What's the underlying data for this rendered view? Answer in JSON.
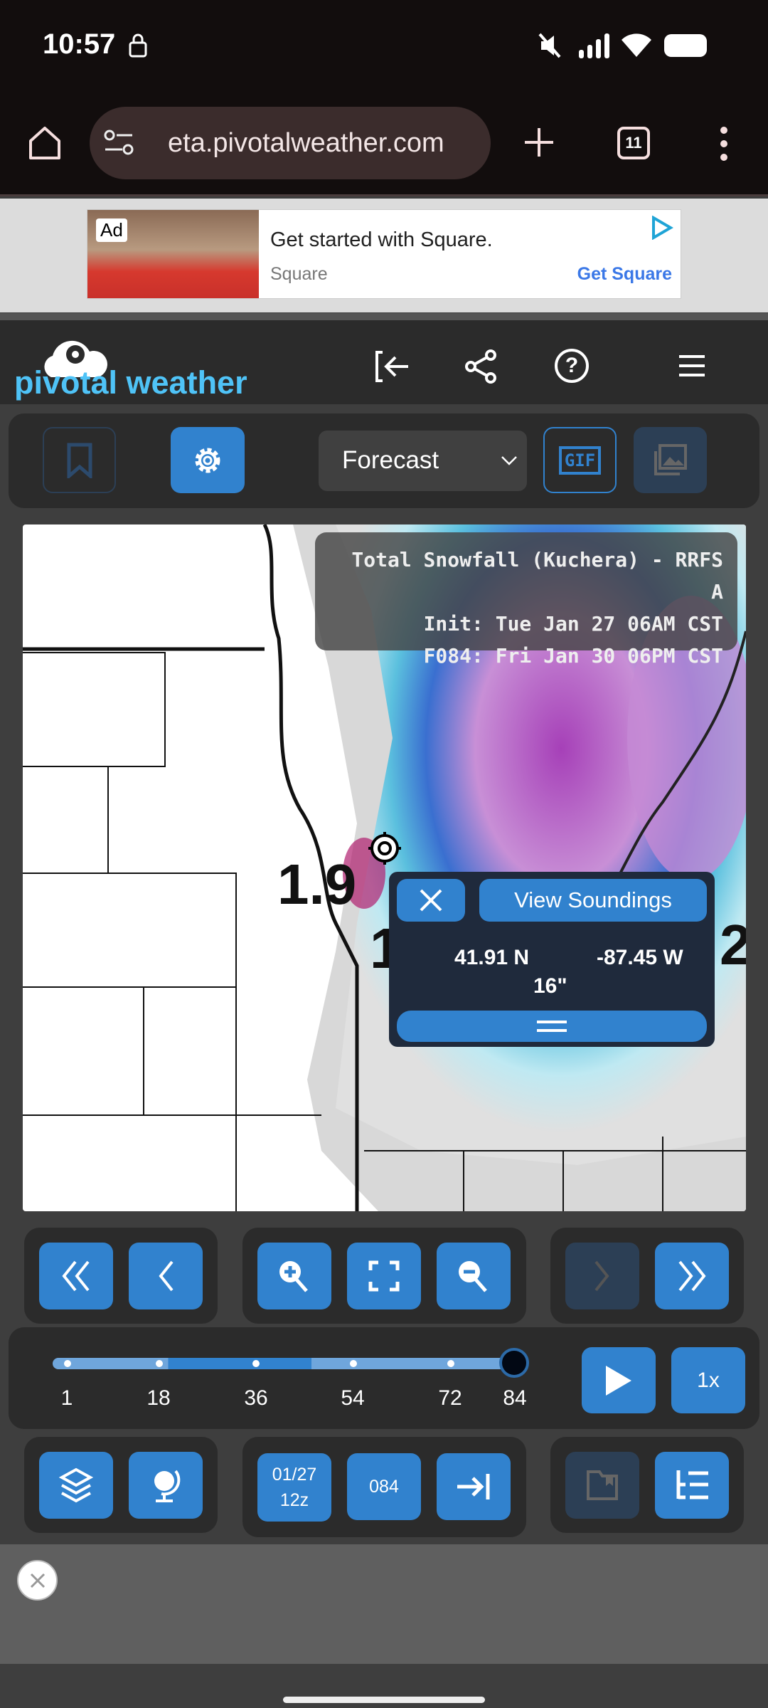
{
  "status_bar": {
    "time": "10:57",
    "icons": [
      "lock-icon",
      "mute-icon",
      "signal-icon",
      "wifi-icon",
      "battery-icon"
    ]
  },
  "browser": {
    "url": "beta.pivotalweather.com",
    "url_visible": "eta.pivotalweather.com",
    "tab_count": "11"
  },
  "ad_top": {
    "badge": "Ad",
    "headline": "Get started with Square.",
    "advertiser": "Square",
    "cta": "Get Square"
  },
  "header": {
    "logo": "pivotal weather",
    "icons": [
      "login-icon",
      "share-icon",
      "help-icon",
      "menu-icon"
    ]
  },
  "toolbar": {
    "mode_select": "Forecast",
    "gif_label": "GIF"
  },
  "map": {
    "title": "Total Snowfall (Kuchera) - RRFS A",
    "init": "Init: Tue Jan 27 06AM CST",
    "valid": "F084: Fri Jan 30 06PM CST",
    "labels": [
      "1.9",
      "1",
      "2"
    ],
    "popup": {
      "soundings_label": "View Soundings",
      "lat": "41.91 N",
      "lon": "-87.45 W",
      "value": "16\""
    }
  },
  "timeline": {
    "ticks": [
      "1",
      "18",
      "36",
      "54",
      "72",
      "84"
    ],
    "current": "84",
    "speed": "1x"
  },
  "controls": {
    "run": "01/27",
    "run_hour": "12z",
    "forecast_hour": "084"
  },
  "colors": {
    "accent": "#3182ce",
    "logo": "#4fc3f7",
    "panel": "#2b2b2b"
  }
}
